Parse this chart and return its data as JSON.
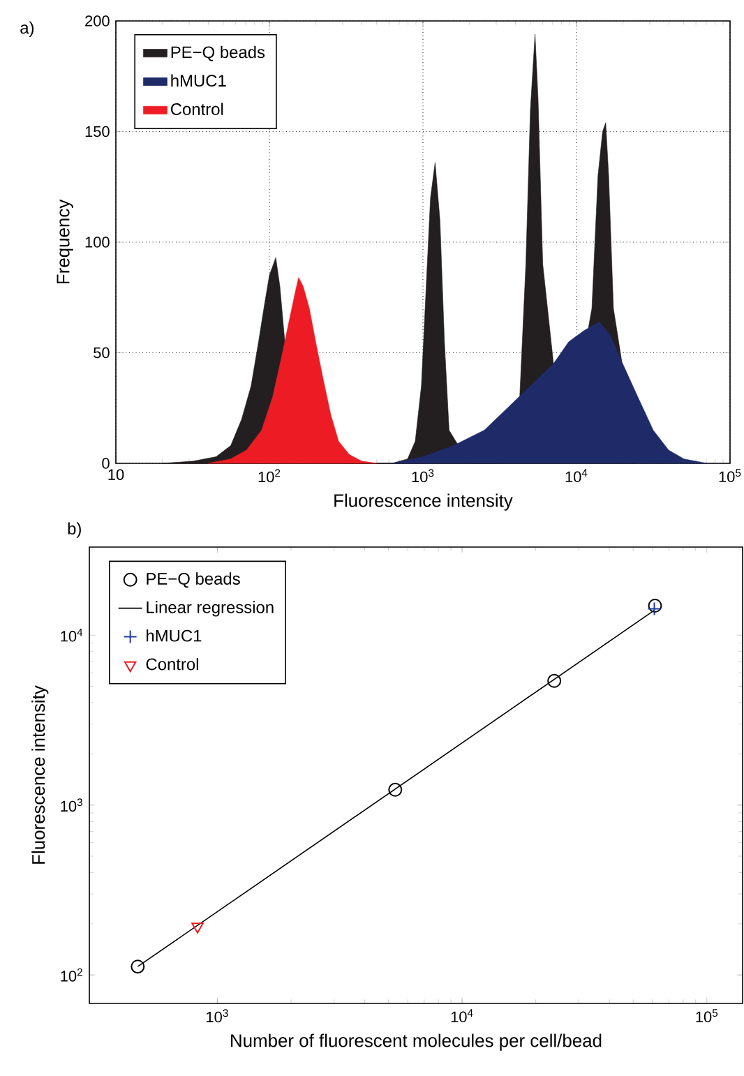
{
  "chart_data": [
    {
      "type": "area",
      "log": "x",
      "xlabel": "Fluorescence intensity",
      "ylabel": "Frequency",
      "annotations": [
        "a)"
      ],
      "xlim": [
        10,
        100000
      ],
      "ylim": [
        0,
        200
      ],
      "xticks": [
        {
          "value": 10,
          "label": "10"
        },
        {
          "value": 100,
          "label": "10$^{2}$"
        },
        {
          "value": 1000,
          "label": "10$^{3}$"
        },
        {
          "value": 10000,
          "label": "10$^{4}$"
        },
        {
          "value": 100000,
          "label": "10$^{5}$"
        }
      ],
      "yticks": [
        0,
        50,
        100,
        150,
        200
      ],
      "grid": true,
      "legend": "top left",
      "series": [
        {
          "name": "PE−Q beads",
          "color": "#231f20",
          "x": [
            20,
            32,
            45,
            56,
            66,
            76,
            85,
            93,
            100,
            110,
            117,
            126,
            135,
            148,
            166,
            200,
            316,
            631,
            794,
            891,
            977,
            1050,
            1120,
            1200,
            1290,
            1380,
            1480,
            1620,
            2000,
            3160,
            3800,
            4270,
            4680,
            5010,
            5370,
            5620,
            6030,
            6460,
            7080,
            8320,
            10000,
            11500,
            12600,
            13800,
            14800,
            15500,
            16200,
            17400,
            19100,
            21400,
            25100
          ],
          "values": [
            0,
            1,
            3,
            8,
            20,
            35,
            55,
            72,
            85,
            93,
            80,
            55,
            null,
            null,
            null,
            null,
            0,
            0,
            2,
            10,
            35,
            80,
            120,
            136,
            110,
            55,
            15,
            null,
            0,
            0,
            null,
            30,
            90,
            160,
            194,
            165,
            90,
            null,
            null,
            0,
            null,
            null,
            70,
            130,
            150,
            154,
            130,
            70,
            null,
            null,
            0
          ]
        },
        {
          "name": "hMUC1",
          "color": "#1f2a68",
          "x": [
            631,
            1000,
            1580,
            2510,
            3550,
            5010,
            7080,
            8910,
            11200,
            14100,
            16600,
            20000,
            25100,
            31600,
            39800,
            50100,
            70800
          ],
          "values": [
            0,
            3,
            8,
            15,
            25,
            35,
            45,
            55,
            60,
            64,
            58,
            45,
            30,
            15,
            6,
            2,
            0
          ]
        },
        {
          "name": "Control",
          "color": "#ed1c24",
          "x": [
            40,
            56,
            71,
            89,
            105,
            120,
            135,
            148,
            155,
            166,
            182,
            200,
            224,
            251,
            282,
            331,
            398,
            501
          ],
          "values": [
            0,
            2,
            6,
            15,
            30,
            48,
            65,
            78,
            84,
            80,
            70,
            55,
            38,
            22,
            10,
            4,
            1,
            0
          ]
        }
      ]
    },
    {
      "type": "scatter",
      "log": "xy",
      "xlabel": "Number of fluorescent molecules per cell/bead",
      "ylabel": "Fluorescence intensity",
      "annotations": [
        "b)"
      ],
      "xlim": [
        300,
        140000
      ],
      "ylim": [
        68,
        33000
      ],
      "xticks": [
        {
          "value": 1000,
          "label": "10$^{3}$"
        },
        {
          "value": 10000,
          "label": "10$^{4}$"
        },
        {
          "value": 100000,
          "label": "10$^{5}$"
        }
      ],
      "yticks": [
        {
          "value": 100,
          "label": "10$^{2}$"
        },
        {
          "value": 1000,
          "label": "10$^{3}$"
        },
        {
          "value": 10000,
          "label": "10$^{4}$"
        }
      ],
      "legend": "top left",
      "series": [
        {
          "name": "PE−Q beads",
          "color": "#000000",
          "marker": "circle",
          "x": [
            473,
            5330,
            23800,
            61400
          ],
          "values": [
            112,
            1230,
            5380,
            14900
          ]
        },
        {
          "name": "Linear regression",
          "type": "line",
          "color": "#000000",
          "marker": "none",
          "x": [
            473,
            61000
          ],
          "values": [
            112,
            14000
          ]
        },
        {
          "name": "hMUC1",
          "color": "#1f3c9c",
          "marker": "cross",
          "x": [
            61000
          ],
          "values": [
            14300
          ]
        },
        {
          "name": "Control",
          "color": "#ed1c24",
          "marker": "triangle",
          "x": [
            830
          ],
          "values": [
            193
          ]
        }
      ]
    }
  ]
}
